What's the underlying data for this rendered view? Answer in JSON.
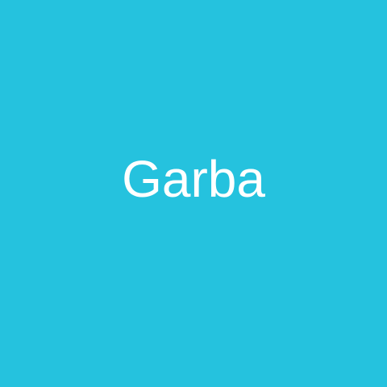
{
  "tile": {
    "label": "Garba",
    "background_color": "#25c2de",
    "text_color": "#ffffff"
  }
}
